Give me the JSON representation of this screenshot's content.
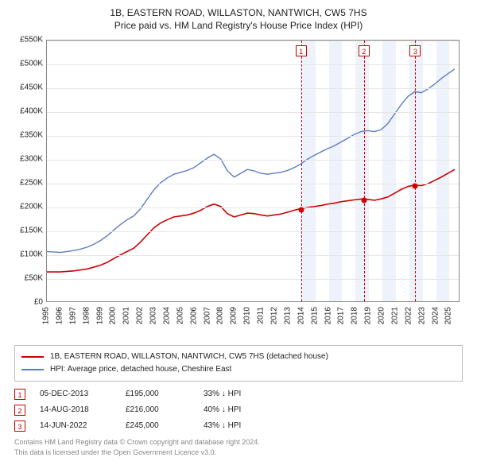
{
  "title": {
    "line1": "1B, EASTERN ROAD, WILLASTON, NANTWICH, CW5 7HS",
    "line2": "Price paid vs. HM Land Registry's House Price Index (HPI)"
  },
  "chart": {
    "type": "line",
    "background_color": "#ffffff",
    "grid_color": "#e6e6e6",
    "border_color": "#888888",
    "band_color": "#eef2fa",
    "x_min": 1995,
    "x_max": 2025.8,
    "y_min": 0,
    "y_max": 550000,
    "y_prefix": "£",
    "y_ticks": [
      0,
      50000,
      100000,
      150000,
      200000,
      250000,
      300000,
      350000,
      400000,
      450000,
      500000,
      550000
    ],
    "y_tick_labels": [
      "£0",
      "£50K",
      "£100K",
      "£150K",
      "£200K",
      "£250K",
      "£300K",
      "£350K",
      "£400K",
      "£450K",
      "£500K",
      "£550K"
    ],
    "x_ticks": [
      1995,
      1996,
      1997,
      1998,
      1999,
      2000,
      2001,
      2002,
      2003,
      2004,
      2005,
      2006,
      2007,
      2008,
      2009,
      2010,
      2011,
      2012,
      2013,
      2014,
      2015,
      2016,
      2017,
      2018,
      2019,
      2020,
      2021,
      2022,
      2023,
      2024,
      2025
    ],
    "band_years": [
      [
        2014,
        2015
      ],
      [
        2016,
        2017
      ],
      [
        2018,
        2019
      ],
      [
        2020,
        2021
      ],
      [
        2022,
        2023
      ],
      [
        2024,
        2025
      ]
    ],
    "series": {
      "price_paid": {
        "name": "price-paid",
        "label": "1B, EASTERN ROAD, WILLASTON, NANTWICH, CW5 7HS (detached house)",
        "color": "#cc0000",
        "line_width": 1.6,
        "points": [
          [
            1995.0,
            62000
          ],
          [
            1995.5,
            62000
          ],
          [
            1996.0,
            62000
          ],
          [
            1996.5,
            63000
          ],
          [
            1997.0,
            64000
          ],
          [
            1997.5,
            66000
          ],
          [
            1998.0,
            68000
          ],
          [
            1998.5,
            72000
          ],
          [
            1999.0,
            76000
          ],
          [
            1999.5,
            82000
          ],
          [
            2000.0,
            90000
          ],
          [
            2000.5,
            98000
          ],
          [
            2001.0,
            105000
          ],
          [
            2001.5,
            112000
          ],
          [
            2002.0,
            125000
          ],
          [
            2002.5,
            140000
          ],
          [
            2003.0,
            155000
          ],
          [
            2003.5,
            165000
          ],
          [
            2004.0,
            172000
          ],
          [
            2004.5,
            178000
          ],
          [
            2005.0,
            180000
          ],
          [
            2005.5,
            182000
          ],
          [
            2006.0,
            186000
          ],
          [
            2006.5,
            192000
          ],
          [
            2007.0,
            200000
          ],
          [
            2007.5,
            205000
          ],
          [
            2008.0,
            200000
          ],
          [
            2008.5,
            185000
          ],
          [
            2009.0,
            178000
          ],
          [
            2009.5,
            182000
          ],
          [
            2010.0,
            186000
          ],
          [
            2010.5,
            185000
          ],
          [
            2011.0,
            182000
          ],
          [
            2011.5,
            180000
          ],
          [
            2012.0,
            182000
          ],
          [
            2012.5,
            184000
          ],
          [
            2013.0,
            188000
          ],
          [
            2013.5,
            192000
          ],
          [
            2013.93,
            195000
          ],
          [
            2014.5,
            198000
          ],
          [
            2015.0,
            200000
          ],
          [
            2015.5,
            202000
          ],
          [
            2016.0,
            205000
          ],
          [
            2016.5,
            207000
          ],
          [
            2017.0,
            210000
          ],
          [
            2017.5,
            212000
          ],
          [
            2018.0,
            214000
          ],
          [
            2018.62,
            216000
          ],
          [
            2019.0,
            215000
          ],
          [
            2019.5,
            213000
          ],
          [
            2020.0,
            216000
          ],
          [
            2020.5,
            220000
          ],
          [
            2021.0,
            228000
          ],
          [
            2021.5,
            236000
          ],
          [
            2022.0,
            242000
          ],
          [
            2022.45,
            245000
          ],
          [
            2023.0,
            244000
          ],
          [
            2023.5,
            248000
          ],
          [
            2024.0,
            255000
          ],
          [
            2024.5,
            262000
          ],
          [
            2025.0,
            270000
          ],
          [
            2025.5,
            278000
          ]
        ]
      },
      "hpi": {
        "name": "hpi",
        "label": "HPI: Average price, detached house, Cheshire East",
        "color": "#5b7cc4",
        "line_width": 1.4,
        "points": [
          [
            1995.0,
            105000
          ],
          [
            1995.5,
            104000
          ],
          [
            1996.0,
            103000
          ],
          [
            1996.5,
            105000
          ],
          [
            1997.0,
            107000
          ],
          [
            1997.5,
            110000
          ],
          [
            1998.0,
            114000
          ],
          [
            1998.5,
            120000
          ],
          [
            1999.0,
            128000
          ],
          [
            1999.5,
            138000
          ],
          [
            2000.0,
            150000
          ],
          [
            2000.5,
            162000
          ],
          [
            2001.0,
            172000
          ],
          [
            2001.5,
            180000
          ],
          [
            2002.0,
            195000
          ],
          [
            2002.5,
            215000
          ],
          [
            2003.0,
            235000
          ],
          [
            2003.5,
            250000
          ],
          [
            2004.0,
            260000
          ],
          [
            2004.5,
            268000
          ],
          [
            2005.0,
            272000
          ],
          [
            2005.5,
            276000
          ],
          [
            2006.0,
            282000
          ],
          [
            2006.5,
            292000
          ],
          [
            2007.0,
            302000
          ],
          [
            2007.5,
            310000
          ],
          [
            2008.0,
            300000
          ],
          [
            2008.5,
            275000
          ],
          [
            2009.0,
            262000
          ],
          [
            2009.5,
            270000
          ],
          [
            2010.0,
            278000
          ],
          [
            2010.5,
            275000
          ],
          [
            2011.0,
            270000
          ],
          [
            2011.5,
            268000
          ],
          [
            2012.0,
            270000
          ],
          [
            2012.5,
            272000
          ],
          [
            2013.0,
            276000
          ],
          [
            2013.5,
            282000
          ],
          [
            2014.0,
            290000
          ],
          [
            2014.5,
            300000
          ],
          [
            2015.0,
            308000
          ],
          [
            2015.5,
            315000
          ],
          [
            2016.0,
            322000
          ],
          [
            2016.5,
            328000
          ],
          [
            2017.0,
            336000
          ],
          [
            2017.5,
            344000
          ],
          [
            2018.0,
            352000
          ],
          [
            2018.5,
            358000
          ],
          [
            2019.0,
            360000
          ],
          [
            2019.5,
            358000
          ],
          [
            2020.0,
            362000
          ],
          [
            2020.5,
            375000
          ],
          [
            2021.0,
            395000
          ],
          [
            2021.5,
            415000
          ],
          [
            2022.0,
            432000
          ],
          [
            2022.5,
            442000
          ],
          [
            2023.0,
            440000
          ],
          [
            2023.5,
            448000
          ],
          [
            2024.0,
            458000
          ],
          [
            2024.5,
            470000
          ],
          [
            2025.0,
            480000
          ],
          [
            2025.5,
            490000
          ]
        ]
      }
    },
    "markers": [
      {
        "n": "1",
        "year": 2013.93,
        "value": 195000
      },
      {
        "n": "2",
        "year": 2018.62,
        "value": 216000
      },
      {
        "n": "3",
        "year": 2022.45,
        "value": 245000
      }
    ],
    "marker_color": "#cc0000",
    "label_fontsize": 10,
    "title_fontsize": 12
  },
  "legend": {
    "row1": "1B, EASTERN ROAD, WILLASTON, NANTWICH, CW5 7HS (detached house)",
    "row2": "HPI: Average price, detached house, Cheshire East"
  },
  "transactions": [
    {
      "n": "1",
      "date": "05-DEC-2013",
      "price": "£195,000",
      "pct": "33% ↓ HPI"
    },
    {
      "n": "2",
      "date": "14-AUG-2018",
      "price": "£216,000",
      "pct": "40% ↓ HPI"
    },
    {
      "n": "3",
      "date": "14-JUN-2022",
      "price": "£245,000",
      "pct": "43% ↓ HPI"
    }
  ],
  "footer": {
    "line1": "Contains HM Land Registry data © Crown copyright and database right 2024.",
    "line2": "This data is licensed under the Open Government Licence v3.0."
  }
}
